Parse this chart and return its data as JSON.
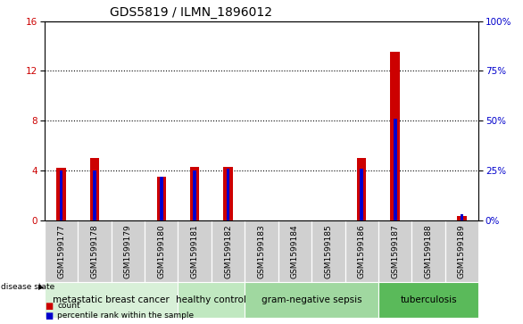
{
  "title": "GDS5819 / ILMN_1896012",
  "samples": [
    "GSM1599177",
    "GSM1599178",
    "GSM1599179",
    "GSM1599180",
    "GSM1599181",
    "GSM1599182",
    "GSM1599183",
    "GSM1599184",
    "GSM1599185",
    "GSM1599186",
    "GSM1599187",
    "GSM1599188",
    "GSM1599189"
  ],
  "counts": [
    4.2,
    5.0,
    0.0,
    3.5,
    4.3,
    4.3,
    0.0,
    0.0,
    0.0,
    5.0,
    13.5,
    0.0,
    0.3
  ],
  "percentile_ranks": [
    25,
    25,
    0,
    22,
    25,
    26,
    0,
    0,
    0,
    26,
    51,
    0,
    3
  ],
  "ylim_left": [
    0,
    16
  ],
  "ylim_right": [
    0,
    100
  ],
  "yticks_left": [
    0,
    4,
    8,
    12,
    16
  ],
  "yticks_right": [
    0,
    25,
    50,
    75,
    100
  ],
  "ytick_labels_right": [
    "0%",
    "25%",
    "50%",
    "75%",
    "100%"
  ],
  "bar_color": "#cc0000",
  "marker_color": "#0000cc",
  "groups": [
    {
      "label": "metastatic breast cancer",
      "start": 0,
      "end": 3,
      "color": "#d8f0d8"
    },
    {
      "label": "healthy control",
      "start": 4,
      "end": 5,
      "color": "#c0e8c0"
    },
    {
      "label": "gram-negative sepsis",
      "start": 6,
      "end": 9,
      "color": "#a0d8a0"
    },
    {
      "label": "tuberculosis",
      "start": 10,
      "end": 12,
      "color": "#5aba5a"
    }
  ],
  "disease_state_label": "disease state",
  "legend_count_label": "count",
  "legend_pct_label": "percentile rank within the sample",
  "tick_bg_color": "#d0d0d0",
  "title_fontsize": 10,
  "tick_fontsize": 6.5,
  "label_fontsize": 7.5,
  "group_label_fontsize": 7.5
}
